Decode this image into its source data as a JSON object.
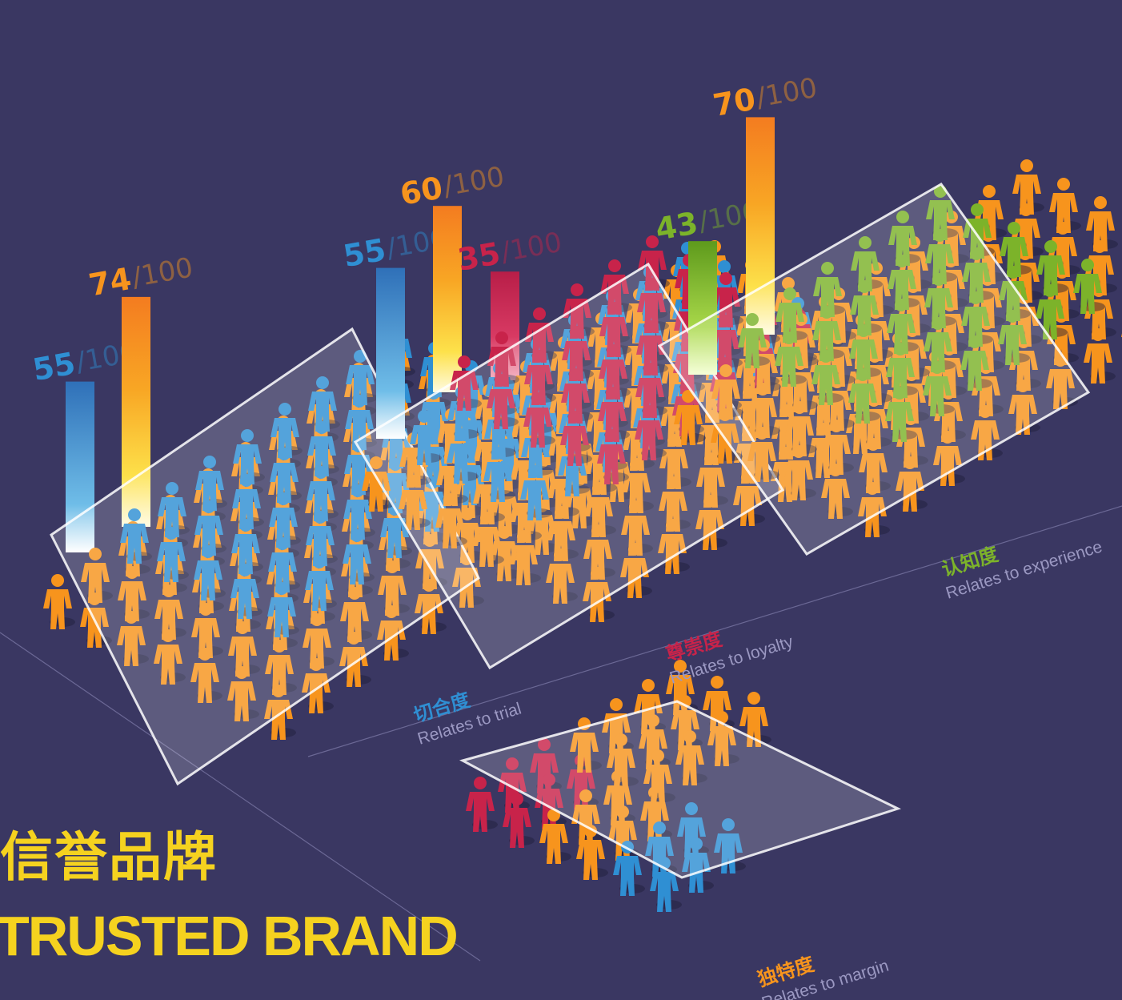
{
  "page": {
    "title_cn": "信誉品牌",
    "title_en": "TRUSTED BRAND"
  },
  "colors": {
    "background": "#3a3762",
    "blue": "#2f8fd3",
    "orange": "#f7941d",
    "red": "#c8234a",
    "green": "#7cb32a",
    "yellow": "#f5d21f"
  },
  "chart_data": [
    {
      "type": "bar",
      "group_cn": "切合度",
      "group_en": "Relates to trial",
      "label_color": "#2f8fd3",
      "scale_max": 100,
      "bars": [
        {
          "value": 55,
          "max": 100,
          "color": "blue"
        },
        {
          "value": 74,
          "max": 100,
          "color": "orange"
        }
      ]
    },
    {
      "type": "bar",
      "group_cn": "尊崇度",
      "group_en": "Relates to loyalty",
      "label_color": "#c8234a",
      "scale_max": 100,
      "bars": [
        {
          "value": 55,
          "max": 100,
          "color": "blue"
        },
        {
          "value": 60,
          "max": 100,
          "color": "orange"
        },
        {
          "value": 35,
          "max": 100,
          "color": "red"
        }
      ]
    },
    {
      "type": "bar",
      "group_cn": "认知度",
      "group_en": "Relates to experience",
      "label_color": "#7cb32a",
      "scale_max": 100,
      "bars": [
        {
          "value": 43,
          "max": 100,
          "color": "green"
        },
        {
          "value": 70,
          "max": 100,
          "color": "orange"
        }
      ]
    },
    {
      "type": "bar",
      "group_cn": "独特度",
      "group_en": "Relates to margin",
      "label_color": "#f7941d",
      "bars": []
    }
  ]
}
